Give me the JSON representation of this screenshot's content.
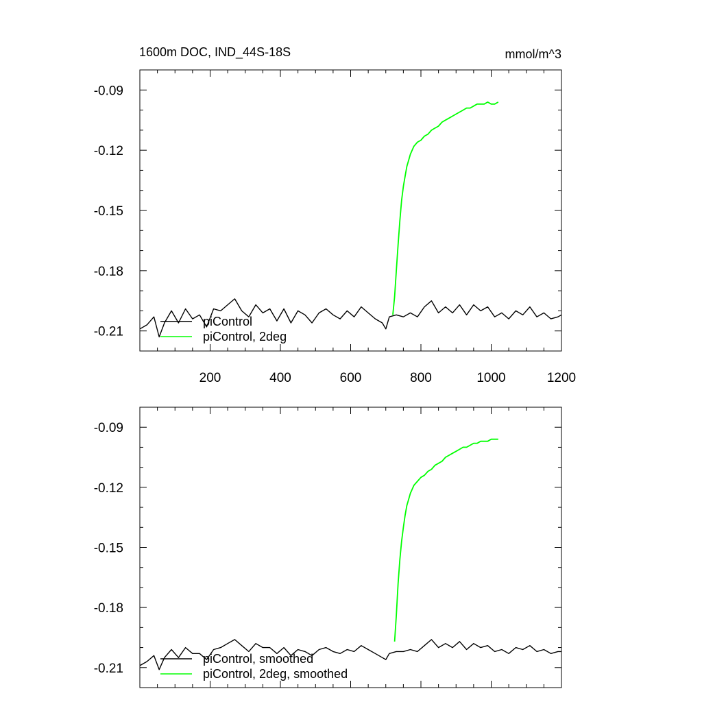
{
  "figure": {
    "title_left": "1600m DOC, IND_44S-18S",
    "title_right": "mmol/m^3"
  },
  "chart_data": [
    {
      "type": "line",
      "title": "1600m DOC, IND_44S-18S",
      "units": "mmol/m^3",
      "xlim": [
        0,
        1200
      ],
      "ylim": [
        -0.22,
        -0.08
      ],
      "x_ticks": [
        200,
        400,
        600,
        800,
        1000,
        1200
      ],
      "x_tick_labels": [
        "200",
        "400",
        "600",
        "800",
        "1000",
        "1200"
      ],
      "x_minor_step": 50,
      "y_ticks": [
        -0.09,
        -0.12,
        -0.15,
        -0.18,
        -0.21
      ],
      "y_tick_labels": [
        "-0.09",
        "-0.12",
        "-0.15",
        "-0.18",
        "-0.21"
      ],
      "y_minor_step": 0.01,
      "legend_position": "bottom-left",
      "series": [
        {
          "name": "piControl",
          "color": "#000000",
          "x": [
            0,
            20,
            40,
            55,
            70,
            90,
            110,
            130,
            150,
            170,
            190,
            210,
            230,
            250,
            270,
            290,
            310,
            330,
            350,
            370,
            390,
            410,
            430,
            450,
            470,
            490,
            510,
            530,
            550,
            570,
            590,
            610,
            630,
            650,
            670,
            690,
            700,
            710,
            730,
            750,
            770,
            790,
            810,
            830,
            850,
            870,
            890,
            910,
            930,
            950,
            970,
            990,
            1010,
            1030,
            1050,
            1070,
            1090,
            1110,
            1130,
            1150,
            1170,
            1190,
            1200
          ],
          "y": [
            -0.209,
            -0.207,
            -0.203,
            -0.213,
            -0.206,
            -0.2,
            -0.206,
            -0.199,
            -0.204,
            -0.202,
            -0.208,
            -0.199,
            -0.2,
            -0.197,
            -0.194,
            -0.2,
            -0.203,
            -0.197,
            -0.201,
            -0.199,
            -0.205,
            -0.199,
            -0.206,
            -0.2,
            -0.202,
            -0.206,
            -0.201,
            -0.199,
            -0.202,
            -0.204,
            -0.2,
            -0.203,
            -0.198,
            -0.201,
            -0.204,
            -0.206,
            -0.209,
            -0.203,
            -0.202,
            -0.203,
            -0.201,
            -0.203,
            -0.198,
            -0.195,
            -0.201,
            -0.198,
            -0.201,
            -0.197,
            -0.202,
            -0.197,
            -0.2,
            -0.198,
            -0.203,
            -0.201,
            -0.204,
            -0.2,
            -0.202,
            -0.198,
            -0.203,
            -0.201,
            -0.204,
            -0.203,
            -0.202
          ]
        },
        {
          "name": "piControl, 2deg",
          "color": "#00ff00",
          "x": [
            720,
            725,
            730,
            735,
            740,
            745,
            750,
            755,
            760,
            765,
            770,
            775,
            780,
            790,
            800,
            810,
            820,
            830,
            840,
            850,
            860,
            870,
            880,
            890,
            900,
            910,
            920,
            930,
            940,
            950,
            960,
            970,
            980,
            990,
            1000,
            1010,
            1020
          ],
          "y": [
            -0.202,
            -0.193,
            -0.18,
            -0.167,
            -0.155,
            -0.145,
            -0.138,
            -0.133,
            -0.128,
            -0.125,
            -0.122,
            -0.12,
            -0.118,
            -0.116,
            -0.115,
            -0.113,
            -0.112,
            -0.11,
            -0.109,
            -0.108,
            -0.106,
            -0.105,
            -0.104,
            -0.103,
            -0.102,
            -0.101,
            -0.1,
            -0.099,
            -0.099,
            -0.098,
            -0.097,
            -0.097,
            -0.097,
            -0.096,
            -0.097,
            -0.097,
            -0.096
          ]
        }
      ]
    },
    {
      "type": "line",
      "xlim": [
        0,
        1200
      ],
      "ylim": [
        -0.22,
        -0.08
      ],
      "x_ticks": [
        200,
        400,
        600,
        800,
        1000,
        1200
      ],
      "x_minor_step": 50,
      "y_ticks": [
        -0.09,
        -0.12,
        -0.15,
        -0.18,
        -0.21
      ],
      "y_tick_labels": [
        "-0.09",
        "-0.12",
        "-0.15",
        "-0.18",
        "-0.21"
      ],
      "y_minor_step": 0.01,
      "legend_position": "bottom-left",
      "series": [
        {
          "name": "piControl, smoothed",
          "color": "#000000",
          "x": [
            0,
            20,
            40,
            55,
            70,
            90,
            110,
            130,
            150,
            170,
            190,
            210,
            230,
            250,
            270,
            290,
            310,
            330,
            350,
            370,
            390,
            410,
            430,
            450,
            470,
            490,
            510,
            530,
            550,
            570,
            590,
            610,
            630,
            650,
            670,
            690,
            700,
            710,
            730,
            750,
            770,
            790,
            810,
            830,
            850,
            870,
            890,
            910,
            930,
            950,
            970,
            990,
            1010,
            1030,
            1050,
            1070,
            1090,
            1110,
            1130,
            1150,
            1170,
            1190,
            1200
          ],
          "y": [
            -0.209,
            -0.207,
            -0.204,
            -0.211,
            -0.205,
            -0.201,
            -0.205,
            -0.2,
            -0.203,
            -0.203,
            -0.206,
            -0.201,
            -0.2,
            -0.198,
            -0.196,
            -0.199,
            -0.202,
            -0.198,
            -0.2,
            -0.2,
            -0.203,
            -0.2,
            -0.204,
            -0.201,
            -0.202,
            -0.204,
            -0.201,
            -0.2,
            -0.202,
            -0.203,
            -0.201,
            -0.202,
            -0.199,
            -0.201,
            -0.203,
            -0.205,
            -0.206,
            -0.203,
            -0.202,
            -0.202,
            -0.201,
            -0.202,
            -0.199,
            -0.196,
            -0.2,
            -0.198,
            -0.2,
            -0.197,
            -0.201,
            -0.198,
            -0.2,
            -0.199,
            -0.202,
            -0.201,
            -0.203,
            -0.2,
            -0.201,
            -0.199,
            -0.202,
            -0.201,
            -0.203,
            -0.202,
            -0.202
          ]
        },
        {
          "name": "piControl, 2deg, smoothed",
          "color": "#00ff00",
          "x": [
            725,
            730,
            735,
            740,
            745,
            750,
            755,
            760,
            765,
            770,
            775,
            780,
            790,
            800,
            810,
            820,
            830,
            840,
            850,
            860,
            870,
            880,
            890,
            900,
            910,
            920,
            930,
            940,
            950,
            960,
            970,
            980,
            990,
            1000,
            1010,
            1020
          ],
          "y": [
            -0.197,
            -0.184,
            -0.168,
            -0.156,
            -0.147,
            -0.14,
            -0.134,
            -0.129,
            -0.126,
            -0.123,
            -0.121,
            -0.119,
            -0.117,
            -0.115,
            -0.114,
            -0.112,
            -0.111,
            -0.109,
            -0.108,
            -0.107,
            -0.105,
            -0.104,
            -0.103,
            -0.102,
            -0.101,
            -0.1,
            -0.1,
            -0.099,
            -0.098,
            -0.098,
            -0.097,
            -0.097,
            -0.097,
            -0.096,
            -0.096,
            -0.096
          ]
        }
      ]
    }
  ]
}
